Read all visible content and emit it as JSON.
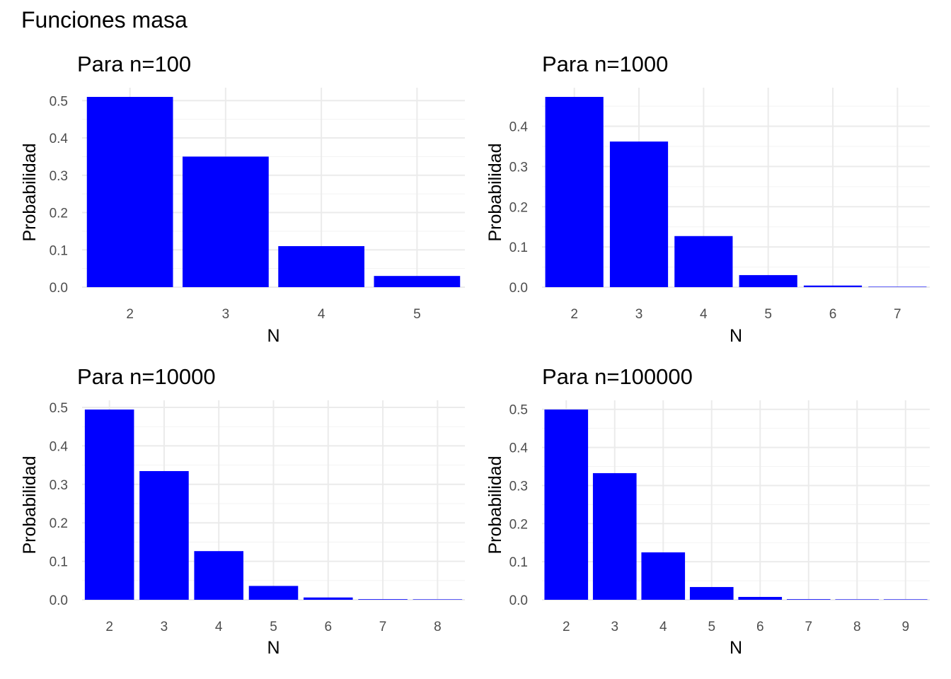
{
  "figure": {
    "title": "Funciones masa"
  },
  "style": {
    "bar_color": "#0000FF",
    "grid_major": "#EBEBEB",
    "grid_minor": "#F3F3F3",
    "tick_color": "#4D4D4D"
  },
  "chart_data": [
    {
      "type": "bar",
      "title": "Para n=100",
      "xlabel": "N",
      "ylabel": "Probabilidad",
      "categories": [
        "2",
        "3",
        "4",
        "5"
      ],
      "values": [
        0.51,
        0.35,
        0.11,
        0.03
      ],
      "ylim": [
        0,
        0.51
      ],
      "yticks": [
        "0.0",
        "0.1",
        "0.2",
        "0.3",
        "0.4",
        "0.5"
      ],
      "grid": true
    },
    {
      "type": "bar",
      "title": "Para n=1000",
      "xlabel": "N",
      "ylabel": "Probabilidad",
      "categories": [
        "2",
        "3",
        "4",
        "5",
        "6",
        "7"
      ],
      "values": [
        0.473,
        0.362,
        0.127,
        0.03,
        0.004,
        0.001
      ],
      "ylim": [
        0,
        0.473
      ],
      "yticks": [
        "0.0",
        "0.1",
        "0.2",
        "0.3",
        "0.4"
      ],
      "grid": true
    },
    {
      "type": "bar",
      "title": "Para n=10000",
      "xlabel": "N",
      "ylabel": "Probabilidad",
      "categories": [
        "2",
        "3",
        "4",
        "5",
        "6",
        "7",
        "8"
      ],
      "values": [
        0.4945,
        0.3345,
        0.1265,
        0.036,
        0.006,
        0.0015,
        0.0005
      ],
      "ylim": [
        0,
        0.4945
      ],
      "yticks": [
        "0.0",
        "0.1",
        "0.2",
        "0.3",
        "0.4",
        "0.5"
      ],
      "grid": true
    },
    {
      "type": "bar",
      "title": "Para n=100000",
      "xlabel": "N",
      "ylabel": "Probabilidad",
      "categories": [
        "2",
        "3",
        "4",
        "5",
        "6",
        "7",
        "8",
        "9"
      ],
      "values": [
        0.4995,
        0.3325,
        0.1245,
        0.0335,
        0.0075,
        0.0015,
        0.0005,
        0.0001
      ],
      "ylim": [
        0,
        0.4995
      ],
      "yticks": [
        "0.0",
        "0.1",
        "0.2",
        "0.3",
        "0.4",
        "0.5"
      ],
      "grid": true
    }
  ]
}
